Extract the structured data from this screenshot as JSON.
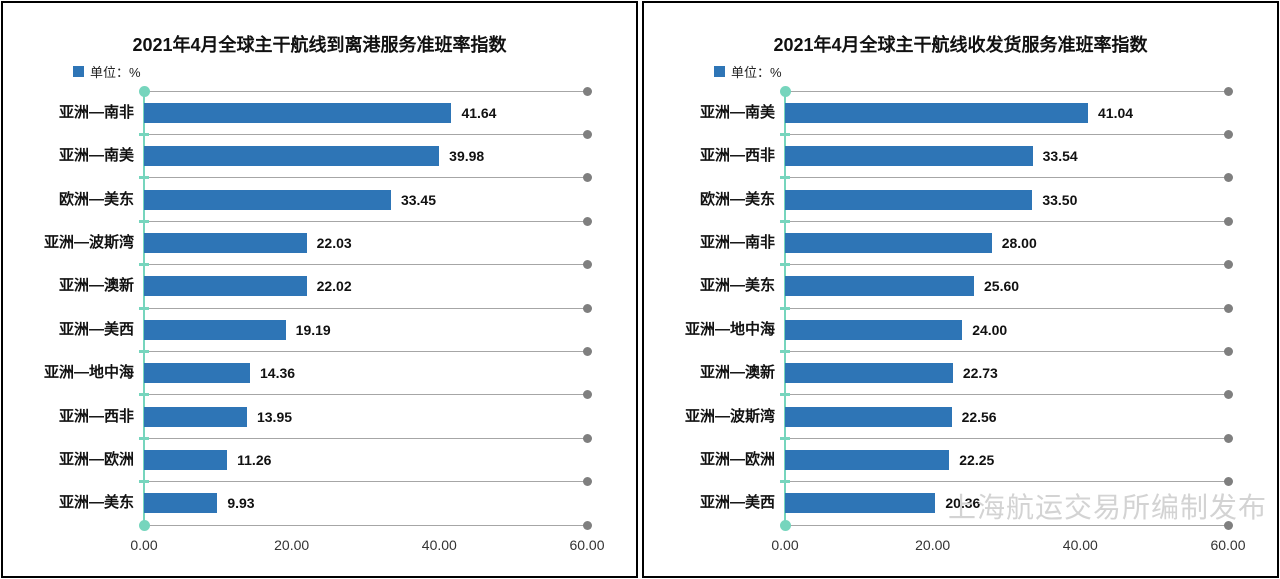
{
  "watermark": "上海航运交易所编制发布",
  "colors": {
    "bar": "#2e75b6",
    "axis_teal": "#76d5bd",
    "grid_line": "#a6a6a6",
    "end_dot": "#7f7f7f",
    "watermark": "#d3d3d3"
  },
  "chart_data": [
    {
      "type": "bar",
      "orientation": "horizontal",
      "title": "2021年4月全球主干航线到离港服务准班率指数",
      "legend": "单位：%",
      "categories": [
        "亚洲—南非",
        "亚洲—南美",
        "欧洲—美东",
        "亚洲—波斯湾",
        "亚洲—澳新",
        "亚洲—美西",
        "亚洲—地中海",
        "亚洲—西非",
        "亚洲—欧洲",
        "亚洲—美东"
      ],
      "values": [
        41.64,
        39.98,
        33.45,
        22.03,
        22.02,
        19.19,
        14.36,
        13.95,
        11.26,
        9.93
      ],
      "value_labels": [
        "41.64",
        "39.98",
        "33.45",
        "22.03",
        "22.02",
        "19.19",
        "14.36",
        "13.95",
        "11.26",
        "9.93"
      ],
      "xlim": [
        0,
        60
      ],
      "xticks": [
        "0.00",
        "20.00",
        "40.00",
        "60.00"
      ],
      "grid": "row-separator-lines-with-end-dots",
      "legend_position": "top-left"
    },
    {
      "type": "bar",
      "orientation": "horizontal",
      "title": "2021年4月全球主干航线收发货服务准班率指数",
      "legend": "单位：%",
      "categories": [
        "亚洲—南美",
        "亚洲—西非",
        "欧洲—美东",
        "亚洲—南非",
        "亚洲—美东",
        "亚洲—地中海",
        "亚洲—澳新",
        "亚洲—波斯湾",
        "亚洲—欧洲",
        "亚洲—美西"
      ],
      "values": [
        41.04,
        33.54,
        33.5,
        28.0,
        25.6,
        24.0,
        22.73,
        22.56,
        22.25,
        20.36
      ],
      "value_labels": [
        "41.04",
        "33.54",
        "33.50",
        "28.00",
        "25.60",
        "24.00",
        "22.73",
        "22.56",
        "22.25",
        "20.36"
      ],
      "xlim": [
        0,
        60
      ],
      "xticks": [
        "0.00",
        "20.00",
        "40.00",
        "60.00"
      ],
      "grid": "row-separator-lines-with-end-dots",
      "legend_position": "top-left"
    }
  ]
}
